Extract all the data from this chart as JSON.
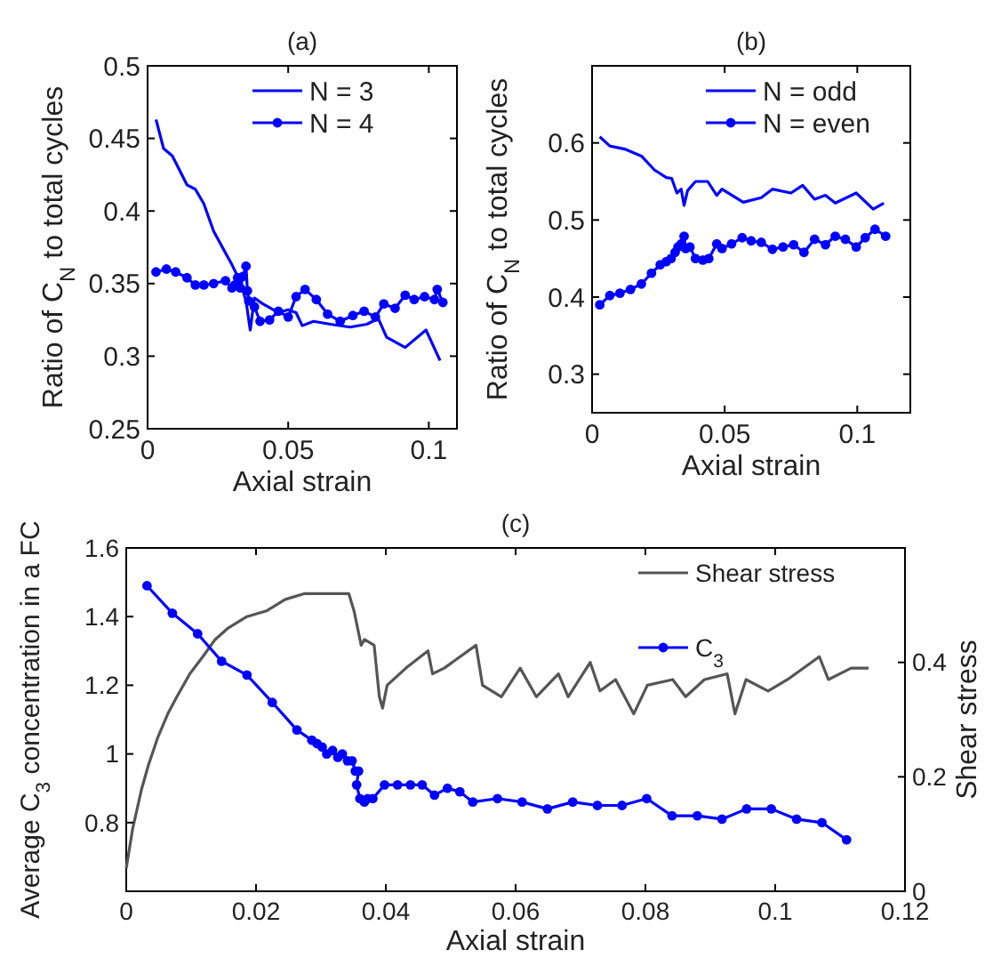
{
  "chart_data": [
    {
      "type": "line",
      "title": "(a)",
      "xlabel": "Axial strain",
      "ylabel": "Ratio of C$_{N}$ to total cycles",
      "xlim": [
        0,
        0.11
      ],
      "xticks": [
        0,
        0.05,
        0.1
      ],
      "ylim": [
        0.25,
        0.5
      ],
      "yticks": [
        0.25,
        0.3,
        0.35,
        0.4,
        0.45,
        0.5
      ],
      "legend": "top right",
      "series": [
        {
          "name": "N = 3",
          "color": "#0000ff",
          "marker": "none",
          "x": [
            0.003,
            0.0057,
            0.0088,
            0.014,
            0.017,
            0.02,
            0.0235,
            0.03,
            0.033,
            0.035,
            0.0365,
            0.038,
            0.041,
            0.0465,
            0.05,
            0.0528,
            0.055,
            0.059,
            0.065,
            0.072,
            0.078,
            0.082,
            0.085,
            0.0916,
            0.099,
            0.104
          ],
          "values": [
            0.463,
            0.443,
            0.438,
            0.418,
            0.415,
            0.405,
            0.386,
            0.363,
            0.351,
            0.338,
            0.318,
            0.34,
            0.336,
            0.33,
            0.332,
            0.33,
            0.321,
            0.324,
            0.322,
            0.32,
            0.322,
            0.326,
            0.313,
            0.306,
            0.318,
            0.297
          ]
        },
        {
          "name": "N = 4",
          "color": "#0000ff",
          "marker": "circle",
          "x": [
            0.003,
            0.0067,
            0.01,
            0.014,
            0.017,
            0.02,
            0.0235,
            0.0277,
            0.03,
            0.031,
            0.032,
            0.033,
            0.034,
            0.035,
            0.0355,
            0.036,
            0.038,
            0.04,
            0.0434,
            0.0465,
            0.05,
            0.0528,
            0.056,
            0.06,
            0.064,
            0.0685,
            0.073,
            0.077,
            0.081,
            0.084,
            0.088,
            0.0916,
            0.0948,
            0.0985,
            0.102,
            0.103,
            0.105
          ],
          "values": [
            0.358,
            0.36,
            0.358,
            0.354,
            0.349,
            0.349,
            0.35,
            0.352,
            0.347,
            0.349,
            0.354,
            0.347,
            0.355,
            0.362,
            0.345,
            0.338,
            0.334,
            0.324,
            0.325,
            0.331,
            0.327,
            0.341,
            0.346,
            0.339,
            0.329,
            0.324,
            0.328,
            0.331,
            0.327,
            0.336,
            0.333,
            0.342,
            0.339,
            0.341,
            0.339,
            0.346,
            0.337
          ]
        }
      ]
    },
    {
      "type": "line",
      "title": "(b)",
      "xlabel": "Axial strain",
      "ylabel": "Ratio of C$_{N}$ to total cycles",
      "xlim": [
        0,
        0.12
      ],
      "xticks": [
        0,
        0.05,
        0.1
      ],
      "ylim": [
        0.25,
        0.7
      ],
      "yticks": [
        0.3,
        0.4,
        0.5,
        0.6
      ],
      "legend": "top right",
      "series": [
        {
          "name": "N = odd",
          "color": "#0000ff",
          "marker": "none",
          "x": [
            0.0029,
            0.0067,
            0.0123,
            0.0186,
            0.0235,
            0.028,
            0.03,
            0.032,
            0.0336,
            0.0347,
            0.036,
            0.039,
            0.0436,
            0.047,
            0.049,
            0.057,
            0.0638,
            0.068,
            0.075,
            0.0794,
            0.0839,
            0.088,
            0.0917,
            0.0996,
            0.106,
            0.11
          ],
          "values": [
            0.608,
            0.596,
            0.592,
            0.583,
            0.565,
            0.555,
            0.554,
            0.535,
            0.54,
            0.519,
            0.538,
            0.55,
            0.55,
            0.532,
            0.54,
            0.523,
            0.529,
            0.54,
            0.535,
            0.545,
            0.527,
            0.532,
            0.522,
            0.535,
            0.514,
            0.522
          ]
        },
        {
          "name": "N = even",
          "color": "#0000ff",
          "marker": "circle",
          "x": [
            0.0029,
            0.0067,
            0.0105,
            0.0145,
            0.0186,
            0.0224,
            0.0257,
            0.028,
            0.0298,
            0.0313,
            0.0324,
            0.0336,
            0.0347,
            0.0353,
            0.0369,
            0.039,
            0.0418,
            0.044,
            0.047,
            0.049,
            0.0526,
            0.0566,
            0.06,
            0.0638,
            0.068,
            0.072,
            0.076,
            0.0799,
            0.0839,
            0.088,
            0.0917,
            0.0955,
            0.0996,
            0.103,
            0.1067,
            0.1107
          ],
          "values": [
            0.39,
            0.402,
            0.405,
            0.41,
            0.417,
            0.431,
            0.442,
            0.446,
            0.45,
            0.458,
            0.465,
            0.469,
            0.479,
            0.463,
            0.465,
            0.45,
            0.448,
            0.45,
            0.469,
            0.463,
            0.469,
            0.477,
            0.473,
            0.471,
            0.462,
            0.465,
            0.468,
            0.458,
            0.475,
            0.468,
            0.479,
            0.475,
            0.465,
            0.477,
            0.488,
            0.479
          ]
        }
      ]
    },
    {
      "type": "line",
      "title": "(c)",
      "xlabel": "Axial strain",
      "ylabel": "Average C$_{3}$ concentration in a FC",
      "y2label": "Shear stress",
      "xlim": [
        0,
        0.12
      ],
      "xticks": [
        0,
        0.02,
        0.04,
        0.06,
        0.08,
        0.1,
        0.12
      ],
      "ylim": [
        0.6,
        1.6
      ],
      "yticks": [
        {
          "value": 0.6,
          "label": null
        },
        0.8,
        {
          "value": 1.0,
          "label": "1"
        },
        1.2,
        1.4,
        1.6
      ],
      "y2lim": [
        0,
        0.6
      ],
      "y2ticks": [
        0,
        0.2,
        0.4,
        {
          "value": 0.6,
          "label": null
        }
      ],
      "legend": "top right",
      "series": [
        {
          "name": "Shear stress",
          "color": "#555555",
          "marker": "none",
          "axis": "y2",
          "x": [
            0,
            0.001,
            0.0024,
            0.0034,
            0.0049,
            0.0064,
            0.0078,
            0.0098,
            0.0118,
            0.0137,
            0.0157,
            0.0186,
            0.0216,
            0.0245,
            0.0274,
            0.0313,
            0.0343,
            0.0351,
            0.0362,
            0.0367,
            0.0382,
            0.039,
            0.0395,
            0.0402,
            0.0431,
            0.0465,
            0.0472,
            0.049,
            0.0539,
            0.0549,
            0.0578,
            0.0607,
            0.0632,
            0.0666,
            0.0681,
            0.0715,
            0.073,
            0.0754,
            0.0782,
            0.0803,
            0.0842,
            0.0862,
            0.0891,
            0.0926,
            0.0938,
            0.0955,
            0.0989,
            0.1019,
            0.1068,
            0.1082,
            0.1117,
            0.1144
          ],
          "values": [
            0.04,
            0.11,
            0.18,
            0.22,
            0.27,
            0.31,
            0.34,
            0.38,
            0.41,
            0.44,
            0.46,
            0.48,
            0.49,
            0.51,
            0.52,
            0.52,
            0.52,
            0.49,
            0.43,
            0.44,
            0.43,
            0.34,
            0.32,
            0.36,
            0.39,
            0.42,
            0.38,
            0.39,
            0.43,
            0.36,
            0.34,
            0.39,
            0.34,
            0.38,
            0.34,
            0.4,
            0.35,
            0.37,
            0.31,
            0.36,
            0.37,
            0.34,
            0.37,
            0.38,
            0.31,
            0.37,
            0.35,
            0.37,
            0.41,
            0.37,
            0.39,
            0.39
          ]
        },
        {
          "name": "C$_{3}$",
          "color": "#0000ff",
          "marker": "circle",
          "x": [
            0.0032,
            0.0071,
            0.011,
            0.0147,
            0.0186,
            0.0225,
            0.0263,
            0.0286,
            0.0294,
            0.0302,
            0.0309,
            0.0318,
            0.0326,
            0.0333,
            0.0341,
            0.0348,
            0.0353,
            0.0358,
            0.0355,
            0.036,
            0.0367,
            0.0372,
            0.038,
            0.0398,
            0.0418,
            0.0438,
            0.0456,
            0.0475,
            0.0495,
            0.0514,
            0.0534,
            0.0572,
            0.061,
            0.0649,
            0.0688,
            0.0726,
            0.0764,
            0.0802,
            0.0841,
            0.088,
            0.0918,
            0.0956,
            0.0994,
            0.1033,
            0.1072,
            0.111
          ],
          "values": [
            1.49,
            1.41,
            1.35,
            1.27,
            1.23,
            1.15,
            1.07,
            1.04,
            1.03,
            1.02,
            1.0,
            1.01,
            0.99,
            1.0,
            0.98,
            0.98,
            0.95,
            0.95,
            0.91,
            0.87,
            0.86,
            0.87,
            0.87,
            0.91,
            0.91,
            0.91,
            0.91,
            0.88,
            0.9,
            0.89,
            0.86,
            0.87,
            0.86,
            0.84,
            0.86,
            0.85,
            0.85,
            0.87,
            0.82,
            0.82,
            0.81,
            0.84,
            0.84,
            0.81,
            0.8,
            0.75
          ]
        }
      ]
    }
  ]
}
